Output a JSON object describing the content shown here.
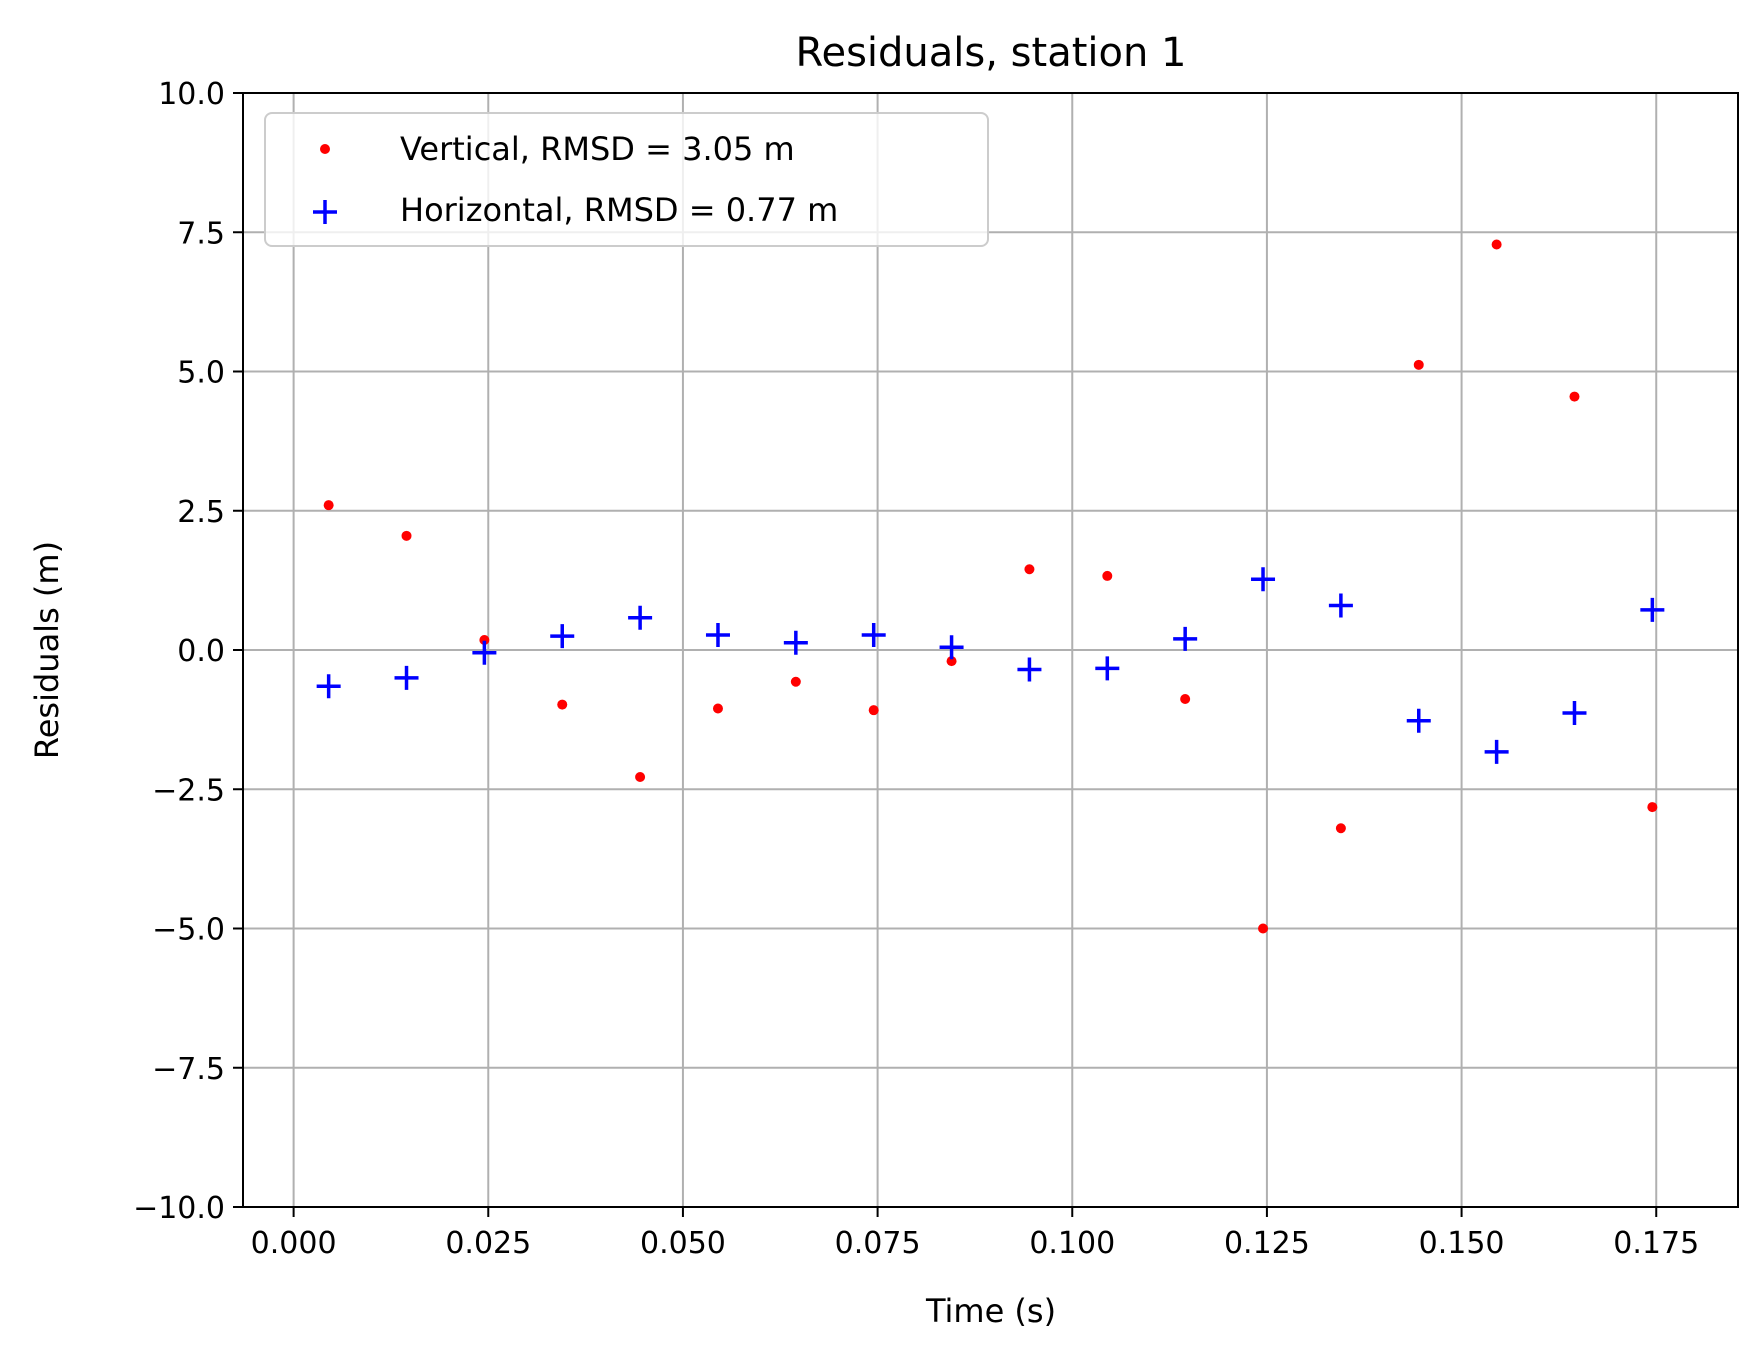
{
  "chart_data": {
    "type": "scatter",
    "title": "Residuals, station 1",
    "xlabel": "Time (s)",
    "ylabel": "Residuals (m)",
    "xlim": [
      -0.0065,
      0.1855
    ],
    "ylim": [
      -10.0,
      10.0
    ],
    "x_ticks": [
      0.0,
      0.025,
      0.05,
      0.075,
      0.1,
      0.125,
      0.15,
      0.175
    ],
    "x_tick_labels": [
      "0.000",
      "0.025",
      "0.050",
      "0.075",
      "0.100",
      "0.125",
      "0.150",
      "0.175"
    ],
    "y_ticks": [
      -10.0,
      -7.5,
      -5.0,
      -2.5,
      0.0,
      2.5,
      5.0,
      7.5,
      10.0
    ],
    "y_tick_labels": [
      "−10.0",
      "−7.5",
      "−5.0",
      "−2.5",
      "0.0",
      "2.5",
      "5.0",
      "7.5",
      "10.0"
    ],
    "grid": true,
    "legend_position": "top-left",
    "x": [
      0.0045,
      0.0145,
      0.0245,
      0.0345,
      0.0445,
      0.0545,
      0.0645,
      0.0745,
      0.0845,
      0.0945,
      0.1045,
      0.1145,
      0.1245,
      0.1345,
      0.1445,
      0.1545,
      0.1645,
      0.1745
    ],
    "series": [
      {
        "name": "Vertical, RMSD = 3.05 m",
        "marker": "dot",
        "color": "#ff0000",
        "values": [
          2.6,
          2.05,
          0.18,
          -0.98,
          -2.28,
          -1.05,
          -0.57,
          -1.08,
          -0.2,
          1.45,
          1.33,
          -0.88,
          -5.0,
          -3.2,
          5.12,
          7.28,
          4.55,
          -2.82
        ]
      },
      {
        "name": "Horizontal, RMSD = 0.77 m",
        "marker": "plus",
        "color": "#0000ff",
        "values": [
          -0.65,
          -0.5,
          -0.05,
          0.25,
          0.58,
          0.27,
          0.13,
          0.27,
          0.05,
          -0.35,
          -0.33,
          0.2,
          1.27,
          0.8,
          -1.27,
          -1.83,
          -1.13,
          0.72
        ]
      }
    ]
  }
}
